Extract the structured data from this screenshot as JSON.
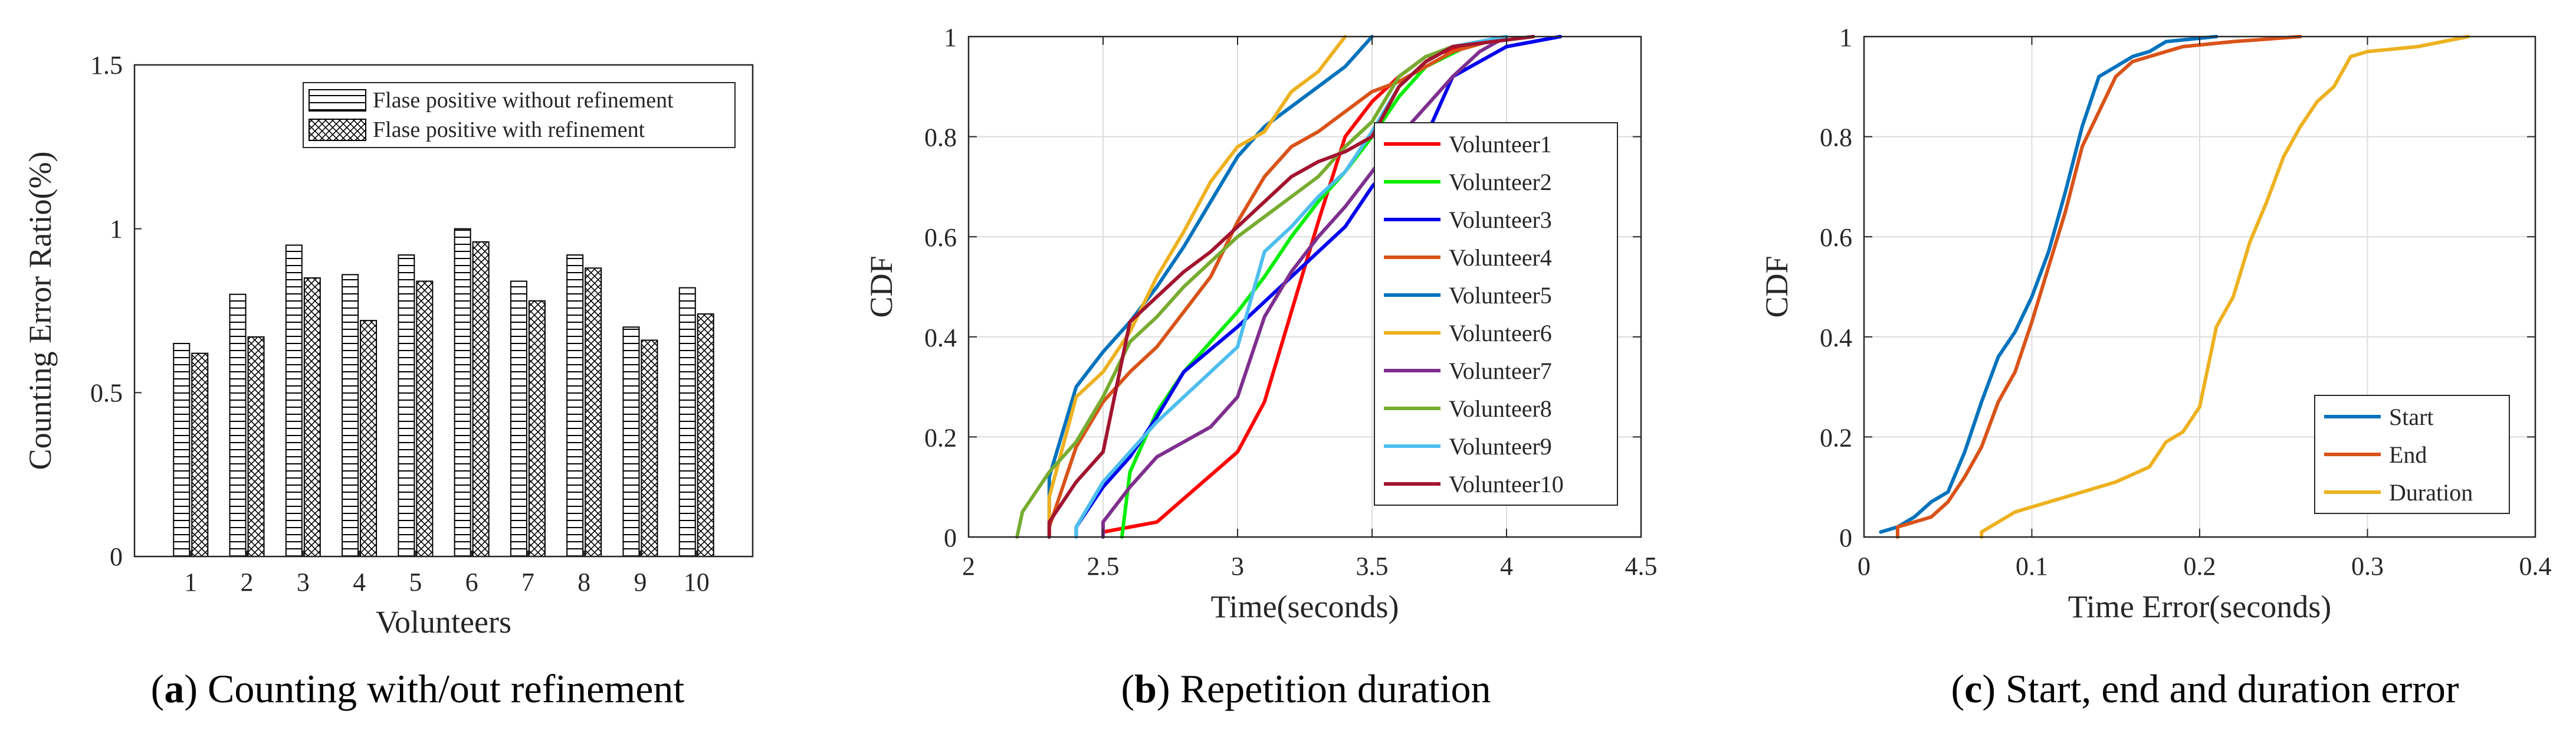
{
  "figure": {
    "captions": [
      {
        "letter": "a",
        "text": " Counting with/out refinement"
      },
      {
        "letter": "b",
        "text": " Repetition duration"
      },
      {
        "letter": "c",
        "text": " Start, end and duration error"
      }
    ]
  },
  "chart_data": [
    {
      "type": "bar",
      "title": "",
      "xlabel": "Volunteers",
      "ylabel": "Counting Error Ratio(%)",
      "ylim": [
        0,
        1.5
      ],
      "yticks": [
        "0",
        "0.5",
        "1",
        "1.5"
      ],
      "categories": [
        "1",
        "2",
        "3",
        "4",
        "5",
        "6",
        "7",
        "8",
        "9",
        "10"
      ],
      "series": [
        {
          "name": "Flase positive without refinement",
          "pattern": "horizontal-lines",
          "values": [
            0.65,
            0.8,
            0.95,
            0.86,
            0.92,
            1.0,
            0.84,
            0.92,
            0.7,
            0.82
          ]
        },
        {
          "name": "Flase positive with refinement",
          "pattern": "crosshatch",
          "values": [
            0.62,
            0.67,
            0.85,
            0.72,
            0.84,
            0.96,
            0.78,
            0.88,
            0.66,
            0.74
          ]
        }
      ],
      "legend_position": "top-right",
      "grid": false
    },
    {
      "type": "line",
      "title": "",
      "xlabel": "Time(seconds)",
      "ylabel": "CDF",
      "xlim": [
        2,
        4.5
      ],
      "ylim": [
        0,
        1
      ],
      "xticks": [
        "2",
        "2.5",
        "3",
        "3.5",
        "4",
        "4.5"
      ],
      "yticks": [
        "0",
        "0.2",
        "0.4",
        "0.6",
        "0.8",
        "1"
      ],
      "grid": true,
      "legend_position": "right",
      "series": [
        {
          "name": "Volunteer1",
          "color": "#ff0000",
          "points": [
            [
              2.5,
              0
            ],
            [
              2.5,
              0.01
            ],
            [
              2.7,
              0.03
            ],
            [
              3.0,
              0.17
            ],
            [
              3.1,
              0.27
            ],
            [
              3.2,
              0.45
            ],
            [
              3.3,
              0.63
            ],
            [
              3.4,
              0.8
            ],
            [
              3.5,
              0.87
            ],
            [
              3.6,
              0.92
            ],
            [
              3.7,
              0.96
            ],
            [
              3.85,
              0.98
            ],
            [
              4.0,
              1.0
            ]
          ]
        },
        {
          "name": "Volunteer2",
          "color": "#00ee00",
          "points": [
            [
              2.57,
              0
            ],
            [
              2.6,
              0.13
            ],
            [
              2.7,
              0.25
            ],
            [
              2.8,
              0.33
            ],
            [
              2.9,
              0.39
            ],
            [
              3.0,
              0.45
            ],
            [
              3.1,
              0.52
            ],
            [
              3.2,
              0.6
            ],
            [
              3.3,
              0.67
            ],
            [
              3.4,
              0.73
            ],
            [
              3.5,
              0.8
            ],
            [
              3.6,
              0.88
            ],
            [
              3.7,
              0.94
            ],
            [
              3.85,
              0.98
            ],
            [
              4.0,
              1.0
            ]
          ]
        },
        {
          "name": "Volunteer3",
          "color": "#0000ee",
          "points": [
            [
              2.4,
              0
            ],
            [
              2.4,
              0.02
            ],
            [
              2.5,
              0.1
            ],
            [
              2.6,
              0.16
            ],
            [
              2.7,
              0.24
            ],
            [
              2.8,
              0.33
            ],
            [
              3.0,
              0.42
            ],
            [
              3.2,
              0.52
            ],
            [
              3.4,
              0.62
            ],
            [
              3.5,
              0.7
            ],
            [
              3.6,
              0.76
            ],
            [
              3.7,
              0.8
            ],
            [
              3.8,
              0.92
            ],
            [
              4.0,
              0.98
            ],
            [
              4.2,
              1.0
            ]
          ]
        },
        {
          "name": "Volunteer4",
          "color": "#d95319",
          "points": [
            [
              2.3,
              0
            ],
            [
              2.3,
              0.02
            ],
            [
              2.35,
              0.1
            ],
            [
              2.4,
              0.18
            ],
            [
              2.5,
              0.27
            ],
            [
              2.6,
              0.33
            ],
            [
              2.7,
              0.38
            ],
            [
              2.8,
              0.45
            ],
            [
              2.9,
              0.52
            ],
            [
              3.0,
              0.63
            ],
            [
              3.1,
              0.72
            ],
            [
              3.2,
              0.78
            ],
            [
              3.3,
              0.81
            ],
            [
              3.5,
              0.89
            ],
            [
              3.6,
              0.91
            ],
            [
              3.8,
              0.97
            ],
            [
              4.0,
              1.0
            ]
          ]
        },
        {
          "name": "Volunteer5",
          "color": "#0072bd",
          "points": [
            [
              2.3,
              0
            ],
            [
              2.3,
              0.12
            ],
            [
              2.4,
              0.3
            ],
            [
              2.5,
              0.37
            ],
            [
              2.6,
              0.43
            ],
            [
              2.7,
              0.5
            ],
            [
              2.8,
              0.58
            ],
            [
              2.9,
              0.67
            ],
            [
              3.0,
              0.76
            ],
            [
              3.1,
              0.82
            ],
            [
              3.2,
              0.86
            ],
            [
              3.3,
              0.9
            ],
            [
              3.4,
              0.94
            ],
            [
              3.5,
              1.0
            ]
          ]
        },
        {
          "name": "Volunteer6",
          "color": "#edb120",
          "points": [
            [
              2.3,
              0
            ],
            [
              2.3,
              0.08
            ],
            [
              2.4,
              0.28
            ],
            [
              2.5,
              0.33
            ],
            [
              2.6,
              0.41
            ],
            [
              2.7,
              0.52
            ],
            [
              2.8,
              0.61
            ],
            [
              2.9,
              0.71
            ],
            [
              3.0,
              0.78
            ],
            [
              3.1,
              0.81
            ],
            [
              3.2,
              0.89
            ],
            [
              3.3,
              0.93
            ],
            [
              3.4,
              1.0
            ]
          ]
        },
        {
          "name": "Volunteer7",
          "color": "#7e2f8e",
          "points": [
            [
              2.5,
              0
            ],
            [
              2.5,
              0.03
            ],
            [
              2.6,
              0.1
            ],
            [
              2.7,
              0.16
            ],
            [
              2.9,
              0.22
            ],
            [
              3.0,
              0.28
            ],
            [
              3.1,
              0.44
            ],
            [
              3.2,
              0.53
            ],
            [
              3.3,
              0.6
            ],
            [
              3.4,
              0.66
            ],
            [
              3.5,
              0.73
            ],
            [
              3.6,
              0.8
            ],
            [
              3.7,
              0.86
            ],
            [
              3.8,
              0.92
            ],
            [
              3.9,
              0.97
            ],
            [
              4.0,
              1.0
            ]
          ]
        },
        {
          "name": "Volunteer8",
          "color": "#77ac30",
          "points": [
            [
              2.18,
              0
            ],
            [
              2.2,
              0.05
            ],
            [
              2.3,
              0.13
            ],
            [
              2.4,
              0.19
            ],
            [
              2.5,
              0.28
            ],
            [
              2.6,
              0.39
            ],
            [
              2.7,
              0.44
            ],
            [
              2.8,
              0.5
            ],
            [
              2.9,
              0.55
            ],
            [
              3.0,
              0.6
            ],
            [
              3.1,
              0.64
            ],
            [
              3.2,
              0.68
            ],
            [
              3.3,
              0.72
            ],
            [
              3.4,
              0.78
            ],
            [
              3.5,
              0.83
            ],
            [
              3.6,
              0.92
            ],
            [
              3.7,
              0.96
            ],
            [
              3.8,
              0.98
            ],
            [
              4.0,
              1.0
            ]
          ]
        },
        {
          "name": "Volunteer9",
          "color": "#4dbeee",
          "points": [
            [
              2.4,
              0
            ],
            [
              2.4,
              0.02
            ],
            [
              2.5,
              0.11
            ],
            [
              2.6,
              0.17
            ],
            [
              2.7,
              0.23
            ],
            [
              2.8,
              0.28
            ],
            [
              2.9,
              0.33
            ],
            [
              3.0,
              0.38
            ],
            [
              3.1,
              0.57
            ],
            [
              3.2,
              0.62
            ],
            [
              3.3,
              0.68
            ],
            [
              3.4,
              0.73
            ],
            [
              3.5,
              0.81
            ],
            [
              3.6,
              0.9
            ],
            [
              3.7,
              0.95
            ],
            [
              3.8,
              0.98
            ],
            [
              4.0,
              1.0
            ]
          ]
        },
        {
          "name": "Volunteer10",
          "color": "#a2142f",
          "points": [
            [
              2.3,
              0
            ],
            [
              2.3,
              0.03
            ],
            [
              2.4,
              0.11
            ],
            [
              2.5,
              0.17
            ],
            [
              2.6,
              0.43
            ],
            [
              2.7,
              0.48
            ],
            [
              2.8,
              0.53
            ],
            [
              2.9,
              0.57
            ],
            [
              3.0,
              0.62
            ],
            [
              3.1,
              0.67
            ],
            [
              3.2,
              0.72
            ],
            [
              3.3,
              0.75
            ],
            [
              3.4,
              0.77
            ],
            [
              3.5,
              0.8
            ],
            [
              3.6,
              0.9
            ],
            [
              3.7,
              0.95
            ],
            [
              3.8,
              0.98
            ],
            [
              4.1,
              1.0
            ]
          ]
        }
      ]
    },
    {
      "type": "line",
      "title": "",
      "xlabel": "Time Error(seconds)",
      "ylabel": "CDF",
      "xlim": [
        0,
        0.4
      ],
      "ylim": [
        0,
        1
      ],
      "xticks": [
        "0",
        "0.1",
        "0.2",
        "0.3",
        "0.4"
      ],
      "yticks": [
        "0",
        "0.2",
        "0.4",
        "0.6",
        "0.8",
        "1"
      ],
      "grid": true,
      "legend_position": "bottom-right",
      "series": [
        {
          "name": "Start",
          "color": "#0072bd",
          "points": [
            [
              0.01,
              0.01
            ],
            [
              0.02,
              0.02
            ],
            [
              0.03,
              0.04
            ],
            [
              0.04,
              0.07
            ],
            [
              0.05,
              0.09
            ],
            [
              0.06,
              0.17
            ],
            [
              0.07,
              0.27
            ],
            [
              0.08,
              0.36
            ],
            [
              0.09,
              0.41
            ],
            [
              0.1,
              0.48
            ],
            [
              0.11,
              0.57
            ],
            [
              0.12,
              0.69
            ],
            [
              0.13,
              0.82
            ],
            [
              0.14,
              0.92
            ],
            [
              0.15,
              0.94
            ],
            [
              0.16,
              0.96
            ],
            [
              0.17,
              0.97
            ],
            [
              0.18,
              0.99
            ],
            [
              0.21,
              1.0
            ]
          ]
        },
        {
          "name": "End",
          "color": "#d95319",
          "points": [
            [
              0.02,
              0
            ],
            [
              0.02,
              0.02
            ],
            [
              0.04,
              0.04
            ],
            [
              0.05,
              0.07
            ],
            [
              0.06,
              0.12
            ],
            [
              0.07,
              0.18
            ],
            [
              0.08,
              0.27
            ],
            [
              0.09,
              0.33
            ],
            [
              0.1,
              0.43
            ],
            [
              0.11,
              0.54
            ],
            [
              0.12,
              0.65
            ],
            [
              0.13,
              0.78
            ],
            [
              0.14,
              0.85
            ],
            [
              0.15,
              0.92
            ],
            [
              0.16,
              0.95
            ],
            [
              0.17,
              0.96
            ],
            [
              0.18,
              0.97
            ],
            [
              0.19,
              0.98
            ],
            [
              0.22,
              0.99
            ],
            [
              0.26,
              1.0
            ]
          ]
        },
        {
          "name": "Duration",
          "color": "#edb120",
          "points": [
            [
              0.07,
              0
            ],
            [
              0.07,
              0.01
            ],
            [
              0.08,
              0.03
            ],
            [
              0.09,
              0.05
            ],
            [
              0.1,
              0.06
            ],
            [
              0.12,
              0.08
            ],
            [
              0.14,
              0.1
            ],
            [
              0.15,
              0.11
            ],
            [
              0.17,
              0.14
            ],
            [
              0.18,
              0.19
            ],
            [
              0.19,
              0.21
            ],
            [
              0.2,
              0.26
            ],
            [
              0.21,
              0.42
            ],
            [
              0.22,
              0.48
            ],
            [
              0.23,
              0.59
            ],
            [
              0.24,
              0.67
            ],
            [
              0.25,
              0.76
            ],
            [
              0.26,
              0.82
            ],
            [
              0.27,
              0.87
            ],
            [
              0.28,
              0.9
            ],
            [
              0.29,
              0.96
            ],
            [
              0.3,
              0.97
            ],
            [
              0.33,
              0.98
            ],
            [
              0.36,
              1.0
            ]
          ]
        }
      ]
    }
  ]
}
